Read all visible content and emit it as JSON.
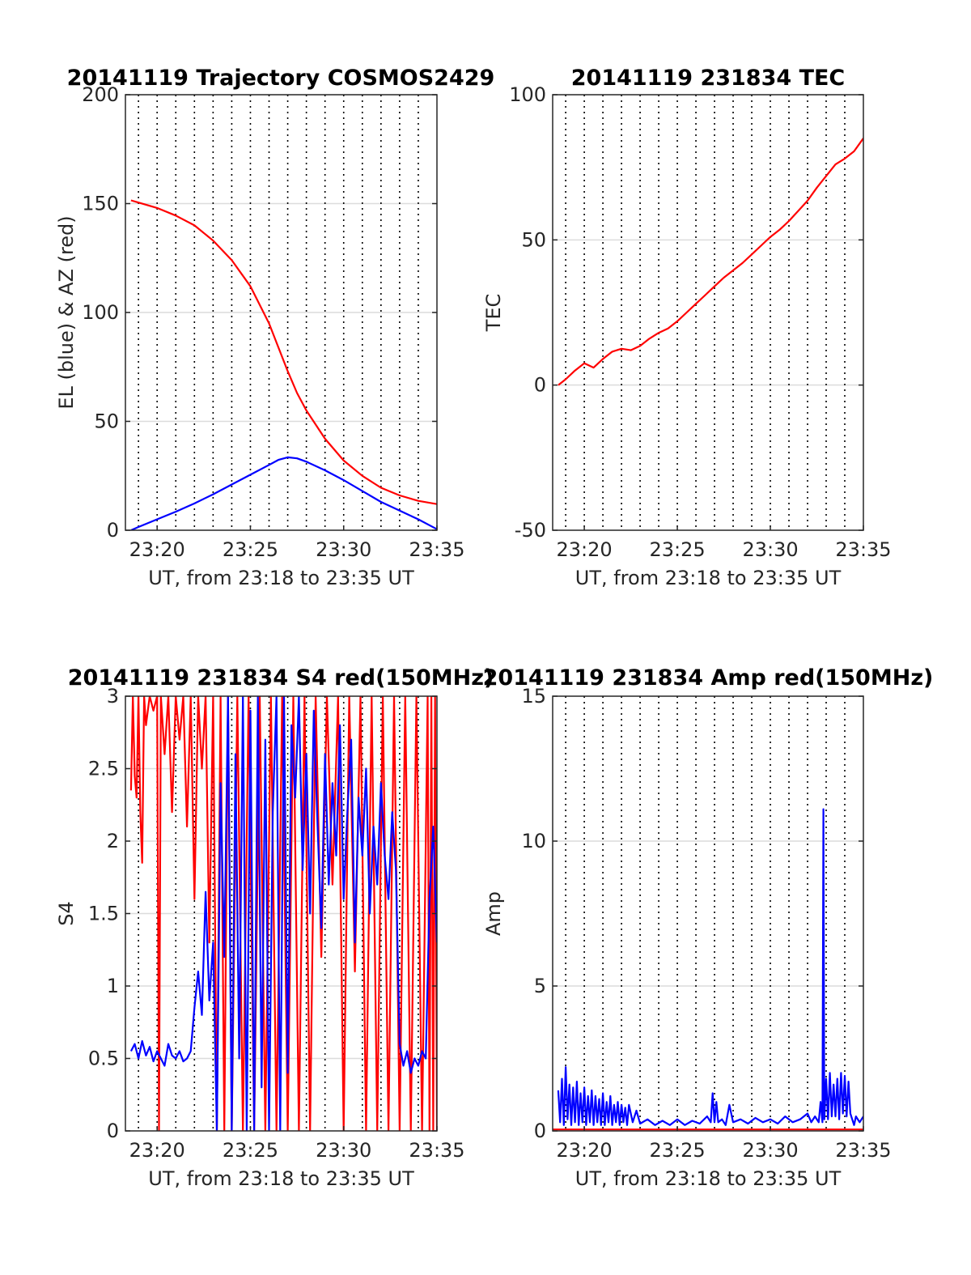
{
  "chart_data": [
    {
      "type": "line",
      "title": "20141119 Trajectory COSMOS2429",
      "xlabel": "UT, from 23:18 to 23:35 UT",
      "ylabel": "EL (blue) & AZ (red)",
      "xlim": [
        18.3,
        35
      ],
      "ylim": [
        0,
        200
      ],
      "xticks": [
        {
          "value": 20,
          "label": "23:20"
        },
        {
          "value": 25,
          "label": "23:25"
        },
        {
          "value": 30,
          "label": "23:30"
        },
        {
          "value": 35,
          "label": "23:35"
        }
      ],
      "yticks": [
        {
          "value": 0,
          "label": "0"
        },
        {
          "value": 50,
          "label": "50"
        },
        {
          "value": 100,
          "label": "100"
        },
        {
          "value": 150,
          "label": "150"
        },
        {
          "value": 200,
          "label": "200"
        }
      ],
      "vgrid": [
        19,
        20,
        21,
        22,
        23,
        24,
        25,
        26,
        27,
        28,
        29,
        30,
        31,
        32,
        33,
        34
      ],
      "grid": true,
      "series": [
        {
          "color": "#0000ff",
          "x": [
            18.6,
            19,
            20,
            21,
            22,
            23,
            24,
            25,
            26,
            26.5,
            27,
            27.5,
            28,
            29,
            30,
            31,
            32,
            33,
            34,
            35
          ],
          "y": [
            0,
            1.5,
            5,
            8.5,
            12.3,
            16.5,
            21,
            25.5,
            30,
            32.3,
            33.5,
            33,
            31.5,
            27.5,
            23,
            18,
            13,
            9,
            5,
            0.5
          ]
        },
        {
          "color": "#ff0000",
          "x": [
            18.6,
            19,
            20,
            21,
            22,
            23,
            24,
            25,
            26,
            26.5,
            27,
            27.5,
            28,
            29,
            30,
            31,
            32,
            33,
            34,
            35
          ],
          "y": [
            151.5,
            150.5,
            148,
            144.5,
            140,
            133,
            124,
            112,
            95,
            84,
            73,
            63,
            55,
            42,
            32,
            25,
            19.5,
            16,
            13.5,
            12
          ]
        }
      ]
    },
    {
      "type": "line",
      "title": "20141119 231834 TEC",
      "xlabel": "UT, from 23:18 to 23:35 UT",
      "ylabel": "TEC",
      "xlim": [
        18.3,
        35
      ],
      "ylim": [
        -50,
        100
      ],
      "xticks": [
        {
          "value": 20,
          "label": "23:20"
        },
        {
          "value": 25,
          "label": "23:25"
        },
        {
          "value": 30,
          "label": "23:30"
        },
        {
          "value": 35,
          "label": "23:35"
        }
      ],
      "yticks": [
        {
          "value": -50,
          "label": "-50"
        },
        {
          "value": 0,
          "label": "0"
        },
        {
          "value": 50,
          "label": "50"
        },
        {
          "value": 100,
          "label": "100"
        }
      ],
      "vgrid": [
        19,
        20,
        21,
        22,
        23,
        24,
        25,
        26,
        27,
        28,
        29,
        30,
        31,
        32,
        33,
        34
      ],
      "grid": true,
      "series": [
        {
          "color": "#ff0000",
          "x": [
            18.6,
            19,
            19.5,
            20,
            20.5,
            21,
            21.5,
            22,
            22.5,
            23,
            23.5,
            24,
            24.5,
            25,
            25.5,
            26,
            26.5,
            27,
            27.5,
            28,
            28.5,
            29,
            29.5,
            30,
            30.5,
            31,
            31.5,
            32,
            32.5,
            33,
            33.5,
            34,
            34.5,
            35
          ],
          "y": [
            0,
            2,
            5,
            7.5,
            6,
            9,
            11.5,
            12.5,
            12,
            13.5,
            16,
            18,
            19.5,
            22,
            25,
            28,
            31,
            34,
            37,
            39.5,
            42,
            45,
            48,
            51,
            53.5,
            56.5,
            60,
            63.5,
            68,
            72,
            76,
            78,
            80.5,
            85
          ]
        }
      ]
    },
    {
      "type": "line",
      "title": "20141119 231834 S4 red(150MHz)",
      "xlabel": "UT, from 23:18 to 23:35 UT",
      "ylabel": "S4",
      "xlim": [
        18.3,
        35
      ],
      "ylim": [
        0,
        3
      ],
      "xticks": [
        {
          "value": 20,
          "label": "23:20"
        },
        {
          "value": 25,
          "label": "23:25"
        },
        {
          "value": 30,
          "label": "23:30"
        },
        {
          "value": 35,
          "label": "23:35"
        }
      ],
      "yticks": [
        {
          "value": 0,
          "label": "0"
        },
        {
          "value": 0.5,
          "label": "0.5"
        },
        {
          "value": 1,
          "label": "1"
        },
        {
          "value": 1.5,
          "label": "1.5"
        },
        {
          "value": 2,
          "label": "2"
        },
        {
          "value": 2.5,
          "label": "2.5"
        },
        {
          "value": 3,
          "label": "3"
        }
      ],
      "vgrid": [
        19,
        20,
        21,
        22,
        23,
        24,
        25,
        26,
        27,
        28,
        29,
        30,
        31,
        32,
        33,
        34
      ],
      "grid": true,
      "series": [
        {
          "color": "#ff0000",
          "x": [
            18.6,
            18.7,
            18.8,
            18.9,
            19,
            19.1,
            19.2,
            19.3,
            19.4,
            19.6,
            19.8,
            20,
            20.1,
            20.2,
            20.4,
            20.6,
            20.8,
            21,
            21.2,
            21.4,
            21.6,
            21.8,
            22,
            22.2,
            22.4,
            22.6,
            22.8,
            23,
            23.2,
            23.4,
            23.6,
            23.8,
            24,
            24.3,
            24.6,
            24.9,
            25.2,
            25.5,
            25.8,
            26.1,
            26.4,
            26.7,
            27,
            27.3,
            27.6,
            27.9,
            28.2,
            28.5,
            28.8,
            29.1,
            29.4,
            29.7,
            30,
            30.3,
            30.6,
            30.9,
            31.2,
            31.5,
            31.8,
            32.1,
            32.4,
            32.7,
            33,
            33.3,
            33.6,
            33.9,
            34.2,
            34.5,
            34.6,
            34.7,
            34.8,
            34.9,
            35
          ],
          "y": [
            2.35,
            3,
            2.45,
            2.3,
            3,
            2.2,
            1.85,
            3,
            2.8,
            3,
            2.9,
            3,
            0,
            3,
            2.6,
            3,
            2.2,
            3,
            2.7,
            3,
            2.1,
            3,
            1.6,
            3,
            2.5,
            3,
            1.3,
            3,
            0,
            3,
            0,
            3,
            0,
            3,
            0,
            3,
            0,
            3,
            0,
            3,
            0,
            3,
            0,
            3,
            0,
            3,
            0,
            3,
            1.2,
            3,
            1.7,
            3,
            0,
            3,
            1.1,
            3,
            0,
            3,
            0,
            3,
            0,
            3,
            0,
            3,
            0,
            3,
            0,
            3,
            0,
            3,
            0,
            3,
            0
          ]
        },
        {
          "color": "#0000ff",
          "x": [
            18.6,
            18.8,
            19,
            19.2,
            19.4,
            19.6,
            19.8,
            20,
            20.2,
            20.4,
            20.6,
            20.8,
            21,
            21.2,
            21.4,
            21.6,
            21.8,
            22,
            22.2,
            22.4,
            22.6,
            22.8,
            23,
            23.2,
            23.4,
            23.6,
            23.8,
            24,
            24.2,
            24.4,
            24.6,
            24.8,
            25,
            25.2,
            25.4,
            25.6,
            25.8,
            26,
            26.2,
            26.4,
            26.6,
            26.8,
            27,
            27.2,
            27.4,
            27.6,
            27.8,
            28,
            28.2,
            28.4,
            28.6,
            28.8,
            29,
            29.2,
            29.4,
            29.6,
            29.8,
            30,
            30.2,
            30.4,
            30.6,
            30.8,
            31,
            31.2,
            31.4,
            31.6,
            31.8,
            32,
            32.2,
            32.4,
            32.6,
            32.8,
            33,
            33.2,
            33.4,
            33.6,
            33.8,
            34,
            34.2,
            34.4,
            34.6,
            34.8,
            35
          ],
          "y": [
            0.55,
            0.6,
            0.5,
            0.62,
            0.52,
            0.58,
            0.48,
            0.55,
            0.5,
            0.45,
            0.6,
            0.52,
            0.5,
            0.55,
            0.48,
            0.5,
            0.55,
            0.85,
            1.1,
            0.8,
            1.65,
            0.9,
            1.3,
            0,
            2.4,
            1.2,
            3,
            0,
            2.6,
            0.5,
            3,
            0,
            2.9,
            0,
            3,
            0.3,
            2.7,
            0,
            2.2,
            3,
            0,
            3,
            0.4,
            2.8,
            2.3,
            3,
            1.8,
            2.6,
            1.5,
            2.9,
            2.1,
            1.4,
            2.6,
            1.7,
            2.4,
            1.9,
            2.8,
            1.6,
            2.2,
            2.7,
            1.3,
            2.3,
            1.9,
            2.5,
            1.5,
            2.1,
            1.7,
            2.4,
            1.9,
            1.6,
            2.2,
            1.8,
            0.6,
            0.45,
            0.55,
            0.4,
            0.5,
            0.45,
            0.55,
            0.5,
            1.6,
            2.1,
            1.3
          ]
        }
      ]
    },
    {
      "type": "line",
      "title": "20141119 231834 Amp red(150MHz)",
      "xlabel": "UT, from 23:18 to 23:35 UT",
      "ylabel": "Amp",
      "xlim": [
        18.3,
        35
      ],
      "ylim": [
        0,
        15
      ],
      "xticks": [
        {
          "value": 20,
          "label": "23:20"
        },
        {
          "value": 25,
          "label": "23:25"
        },
        {
          "value": 30,
          "label": "23:30"
        },
        {
          "value": 35,
          "label": "23:35"
        }
      ],
      "yticks": [
        {
          "value": 0,
          "label": "0"
        },
        {
          "value": 5,
          "label": "5"
        },
        {
          "value": 10,
          "label": "10"
        },
        {
          "value": 15,
          "label": "15"
        }
      ],
      "vgrid": [
        19,
        20,
        21,
        22,
        23,
        24,
        25,
        26,
        27,
        28,
        29,
        30,
        31,
        32,
        33,
        34
      ],
      "grid": true,
      "series": [
        {
          "color": "#ff0000",
          "x": [
            18.3,
            35
          ],
          "y": [
            0.05,
            0.05
          ]
        },
        {
          "color": "#0000ff",
          "x": [
            18.6,
            18.7,
            18.8,
            18.9,
            19,
            19.1,
            19.2,
            19.3,
            19.4,
            19.5,
            19.6,
            19.7,
            19.8,
            19.9,
            20,
            20.1,
            20.2,
            20.3,
            20.4,
            20.5,
            20.6,
            20.7,
            20.8,
            20.9,
            21,
            21.1,
            21.2,
            21.3,
            21.4,
            21.5,
            21.6,
            21.7,
            21.8,
            21.9,
            22,
            22.1,
            22.2,
            22.3,
            22.4,
            22.6,
            22.8,
            23,
            23.4,
            23.8,
            24.2,
            24.6,
            25,
            25.4,
            25.8,
            26.2,
            26.6,
            26.8,
            26.9,
            27,
            27.1,
            27.2,
            27.4,
            27.6,
            27.8,
            28,
            28.4,
            28.8,
            29.2,
            29.6,
            30,
            30.4,
            30.8,
            31.2,
            31.6,
            32,
            32.2,
            32.4,
            32.6,
            32.7,
            32.8,
            32.85,
            32.9,
            33,
            33.1,
            33.2,
            33.3,
            33.4,
            33.5,
            33.6,
            33.7,
            33.8,
            33.9,
            34,
            34.1,
            34.2,
            34.3,
            34.4,
            34.5,
            34.6,
            34.8,
            35
          ],
          "y": [
            1.4,
            0.3,
            1.8,
            0.2,
            2.2,
            0.4,
            1.6,
            0.2,
            1.5,
            0.3,
            1.7,
            0.2,
            1.3,
            0.3,
            1.5,
            0.2,
            1.2,
            0.3,
            1.4,
            0.2,
            1.2,
            0.3,
            1.1,
            0.2,
            1.3,
            0.2,
            1.0,
            0.3,
            1.2,
            0.2,
            0.9,
            0.3,
            1.0,
            0.2,
            0.9,
            0.3,
            0.8,
            0.2,
            0.9,
            0.3,
            0.7,
            0.25,
            0.4,
            0.2,
            0.35,
            0.2,
            0.4,
            0.2,
            0.35,
            0.25,
            0.5,
            0.3,
            1.3,
            0.3,
            1.0,
            0.3,
            0.4,
            0.2,
            0.9,
            0.3,
            0.4,
            0.25,
            0.45,
            0.3,
            0.4,
            0.25,
            0.5,
            0.3,
            0.4,
            0.6,
            0.3,
            0.5,
            0.3,
            1.0,
            0.3,
            11.1,
            0.4,
            1.8,
            0.4,
            2.0,
            0.5,
            1.6,
            0.5,
            1.8,
            0.4,
            2.0,
            0.6,
            1.9,
            0.5,
            1.7,
            0.6,
            0.4,
            0.2,
            0.5,
            0.3,
            0.5
          ]
        }
      ]
    }
  ]
}
